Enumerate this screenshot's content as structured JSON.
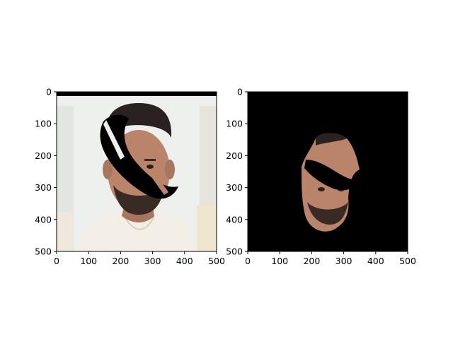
{
  "chart_data": [
    {
      "type": "image",
      "title": "",
      "xlabel": "",
      "ylabel": "",
      "xlim": [
        0,
        500
      ],
      "ylim": [
        500,
        0
      ],
      "y_axis_inverted": true,
      "grid": false,
      "xticks": [
        "0",
        "100",
        "200",
        "300",
        "400",
        "500"
      ],
      "yticks": [
        "0",
        "100",
        "200",
        "300",
        "400",
        "500"
      ],
      "content": "photo of a man's head and shoulders on a light background with a black curved occlusion mask across the face and a black bar along the top",
      "colors": {
        "background": "#eef0ee",
        "shirt": "#f4efe6",
        "skin": "#b9846a",
        "hair": "#2a2220",
        "mask": "#000000"
      }
    },
    {
      "type": "image",
      "title": "",
      "xlabel": "",
      "ylabel": "",
      "xlim": [
        0,
        500
      ],
      "ylim": [
        500,
        0
      ],
      "y_axis_inverted": true,
      "grid": false,
      "xticks": [
        "0",
        "100",
        "200",
        "300",
        "400",
        "500"
      ],
      "yticks": [
        "0",
        "100",
        "200",
        "300",
        "400",
        "500"
      ],
      "content": "segmented face region on a black background, with the same black occlusion band removed from the face",
      "colors": {
        "background": "#000000",
        "skin": "#b9846a",
        "hair": "#2a2220"
      }
    }
  ]
}
